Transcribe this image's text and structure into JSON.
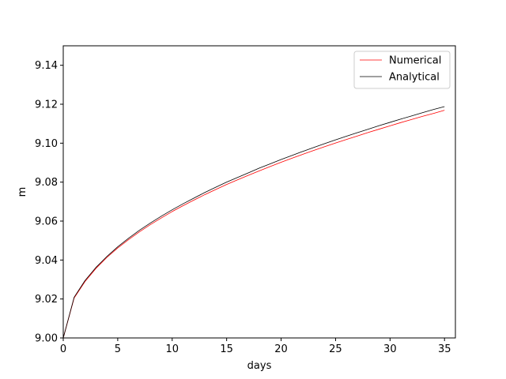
{
  "chart_data": {
    "type": "line",
    "xlabel": "days",
    "ylabel": "m",
    "xlim": [
      0,
      36
    ],
    "ylim": [
      9.0,
      9.15
    ],
    "xticks": [
      0,
      5,
      10,
      15,
      20,
      25,
      30,
      35
    ],
    "yticks": [
      9.0,
      9.02,
      9.04,
      9.06,
      9.08,
      9.1,
      9.12,
      9.14
    ],
    "ytick_decimals": 2,
    "grid": false,
    "legend_position": "top-right",
    "x": [
      0,
      1,
      2,
      3,
      4,
      5,
      6,
      7,
      8,
      9,
      10,
      11,
      12,
      13,
      14,
      15,
      16,
      17,
      18,
      19,
      20,
      21,
      22,
      23,
      24,
      25,
      26,
      27,
      28,
      29,
      30,
      31,
      32,
      33,
      34,
      35
    ],
    "series": [
      {
        "name": "Numerical",
        "color": "#ff0000",
        "values": [
          9.0,
          9.0205,
          9.029,
          9.0357,
          9.0413,
          9.0462,
          9.0505,
          9.0545,
          9.0582,
          9.0616,
          9.0649,
          9.0679,
          9.0708,
          9.0736,
          9.0762,
          9.0788,
          9.0812,
          9.0835,
          9.0858,
          9.088,
          9.0902,
          9.0923,
          9.0943,
          9.0963,
          9.0982,
          9.1001,
          9.1019,
          9.1037,
          9.1055,
          9.1072,
          9.1089,
          9.1106,
          9.1122,
          9.1138,
          9.1153,
          9.1169
        ]
      },
      {
        "name": "Analytical",
        "color": "#000000",
        "values": [
          9.0,
          9.0209,
          9.0295,
          9.0362,
          9.0418,
          9.0468,
          9.0512,
          9.0553,
          9.059,
          9.0625,
          9.0658,
          9.0689,
          9.0718,
          9.0747,
          9.0774,
          9.08,
          9.0824,
          9.0848,
          9.0872,
          9.0894,
          9.0916,
          9.0937,
          9.0958,
          9.0978,
          9.0998,
          9.1017,
          9.1036,
          9.1054,
          9.1072,
          9.109,
          9.1107,
          9.1124,
          9.114,
          9.1157,
          9.1173,
          9.1188
        ]
      }
    ]
  }
}
